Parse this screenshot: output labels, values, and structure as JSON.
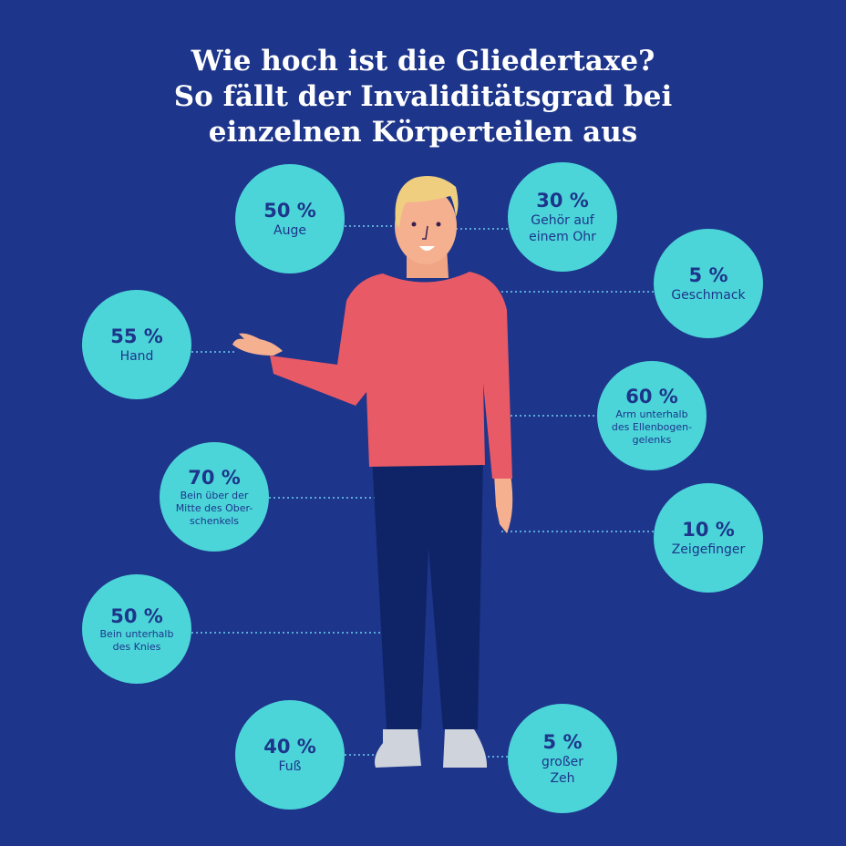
{
  "title": {
    "lines": [
      "Wie hoch ist die Gliedertaxe?",
      "So fällt der Invaliditätsgrad bei",
      "einzelnen Körperteilen aus"
    ]
  },
  "colors": {
    "background": "#1d358a",
    "circle": "#4bd5d9",
    "shirt": "#e85a66",
    "pants": "#0f2466",
    "hair": "#efcf7f",
    "skin": "#f5b08f"
  },
  "items": [
    {
      "percent": "50 %",
      "label": "Auge"
    },
    {
      "percent": "30 %",
      "label": "Gehör auf einem Ohr"
    },
    {
      "percent": "5 %",
      "label": "Geschmack"
    },
    {
      "percent": "55 %",
      "label": "Hand"
    },
    {
      "percent": "60 %",
      "label": "Arm unterhalb des Ellenbogen-gelenks"
    },
    {
      "percent": "70 %",
      "label": "Bein über der Mitte des Ober-schenkels"
    },
    {
      "percent": "10 %",
      "label": "Zeigefinger"
    },
    {
      "percent": "50 %",
      "label": "Bein unterhalb des Knies"
    },
    {
      "percent": "40 %",
      "label": "Fuß"
    },
    {
      "percent": "5 %",
      "label": "großer Zeh"
    }
  ]
}
